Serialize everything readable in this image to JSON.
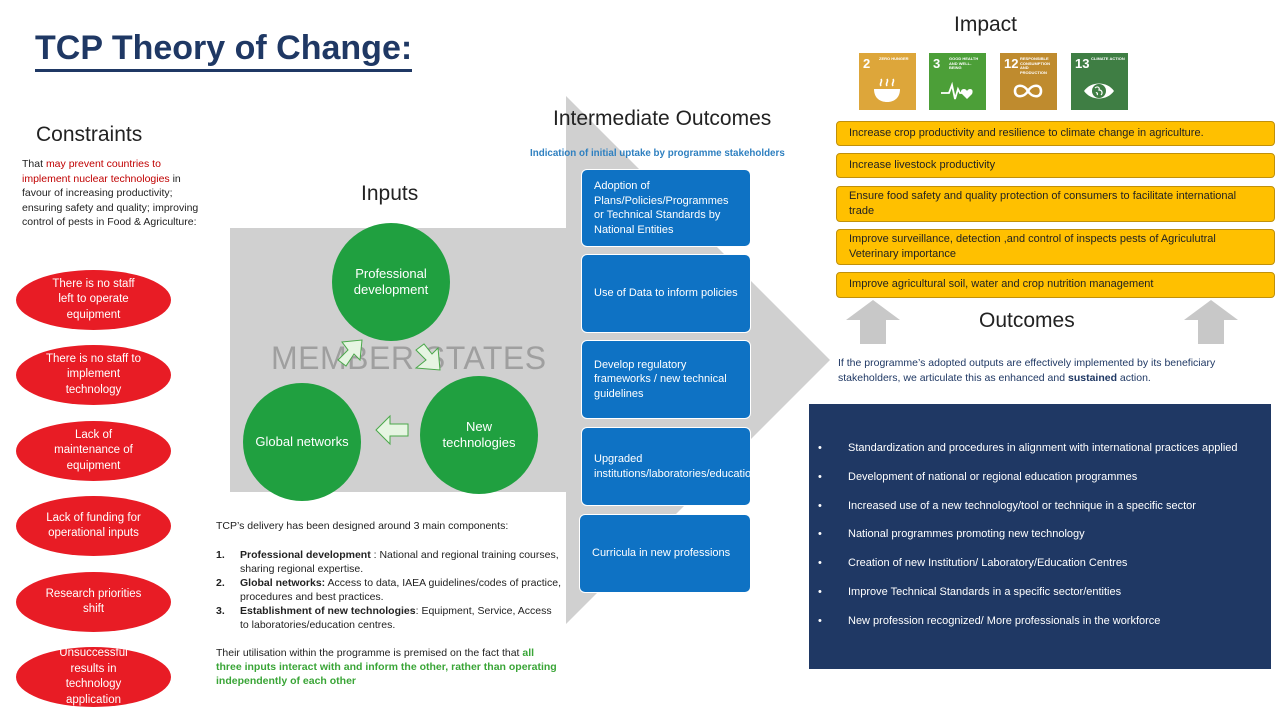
{
  "title": "TCP Theory of Change:",
  "constraints": {
    "heading": "Constraints",
    "desc_pre": "That ",
    "desc_red": "may prevent countries to implement nuclear technologies",
    "desc_post": " in favour of increasing productivity; ensuring safety and quality; improving control of pests in Food & Agriculture:",
    "items": [
      "There is no staff left to operate equipment",
      "There is no staff to implement technology",
      "Lack of maintenance of equipment",
      "Lack of funding for operational inputs",
      "Research priorities shift",
      "Unsuccessful results in technology application"
    ]
  },
  "inputs": {
    "heading": "Inputs",
    "member_states": "MEMBER STATES",
    "circles": [
      "Professional development",
      "Global networks",
      "New technologies"
    ],
    "body": {
      "intro": "TCP’s delivery has been designed around 3 main components:",
      "items": [
        {
          "num": "1.",
          "bold": "Professional development",
          "text": " : National and regional training courses, sharing regional expertise."
        },
        {
          "num": "2.",
          "bold": "Global networks:",
          "text": " Access to data, IAEA guidelines/codes of practice, procedures and best practices."
        },
        {
          "num": "3.",
          "bold": "Establishment of new technologies",
          "text": ": Equipment, Service, Access to laboratories/education centres."
        }
      ],
      "util_pre": "Their utilisation within the programme is premised on the fact that ",
      "util_green": "all three inputs interact with and inform the other, rather than operating independently of each other"
    }
  },
  "intermediate": {
    "heading": "Intermediate Outcomes",
    "subheading": "Indication of initial uptake by programme stakeholders",
    "items": [
      "Adoption of Plans/Policies/Programmes or Technical Standards by National Entities",
      "Use of Data to inform policies",
      "Develop regulatory frameworks / new technical guidelines",
      "Upgraded institutions/laboratories/educational/centers",
      "Curricula in new professions"
    ]
  },
  "impact": {
    "heading": "Impact",
    "sdgs": [
      {
        "num": "2",
        "title": "ZERO HUNGER",
        "color": "#dda63a",
        "icon": "bowl-icon"
      },
      {
        "num": "3",
        "title": "GOOD HEALTH AND WELL-BEING",
        "color": "#4c9f38",
        "icon": "heartbeat-icon"
      },
      {
        "num": "12",
        "title": "RESPONSIBLE CONSUMPTION AND PRODUCTION",
        "color": "#bf8b2e",
        "icon": "infinity-icon"
      },
      {
        "num": "13",
        "title": "CLIMATE ACTION",
        "color": "#3f7e44",
        "icon": "eye-globe-icon"
      }
    ],
    "items": [
      "Increase crop productivity and resilience to climate change in agriculture.",
      "Increase livestock productivity",
      "Ensure food safety and quality protection of consumers to facilitate international trade",
      "Improve surveillance, detection ,and control of inspects pests of Agriculutral Veterinary importance",
      "Improve agricultural soil, water and crop nutrition management"
    ]
  },
  "outcomes": {
    "heading": "Outcomes",
    "desc_pre": "If the programme’s adopted outputs are effectively implemented by its beneficiary stakeholders, we articulate this as enhanced and ",
    "desc_bold": "sustained",
    "desc_post": " action.",
    "bullet": "•",
    "items": [
      "Standardization and procedures in alignment with international practices applied",
      "Development of national or regional education programmes",
      "Increased use of a new technology/tool or technique in a specific sector",
      "National programmes promoting new technology",
      "Creation of new Institution/ Laboratory/Education Centres",
      "Improve Technical Standards in a specific sector/entities",
      "New profession recognized/ More professionals in the workforce"
    ]
  }
}
